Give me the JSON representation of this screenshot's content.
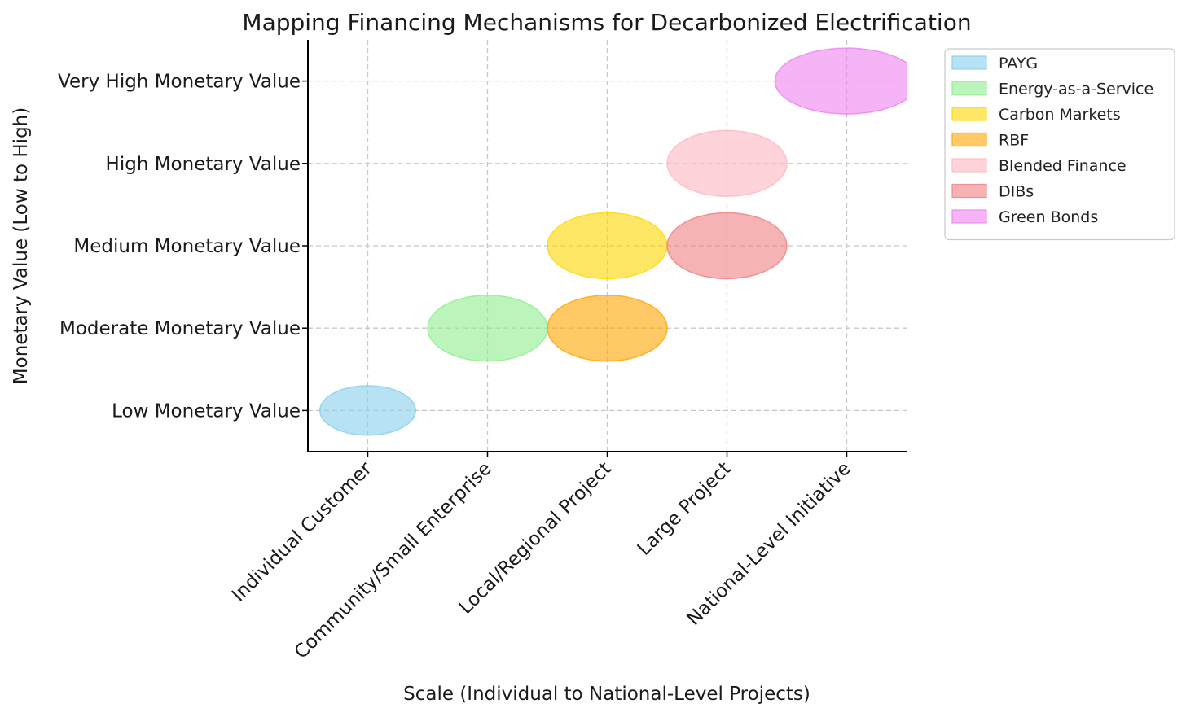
{
  "chart_data": {
    "type": "scatter",
    "title": "Mapping Financing Mechanisms for Decarbonized Electrification",
    "xlabel": "Scale (Individual to National-Level Projects)",
    "ylabel": "Monetary Value (Low to High)",
    "x_categories": [
      "Individual Customer",
      "Community/Small Enterprise",
      "Local/Regional Project",
      "Large Project",
      "National-Level Initiative"
    ],
    "y_categories": [
      "Low Monetary Value",
      "Moderate Monetary Value",
      "Medium Monetary Value",
      "High Monetary Value",
      "Very High Monetary Value"
    ],
    "xlim": [
      -0.5,
      4.5
    ],
    "ylim": [
      -0.5,
      4.5
    ],
    "grid": true,
    "legend_position": "outside upper-right",
    "series": [
      {
        "name": "PAYG",
        "x": 0,
        "y": 0,
        "width": 0.8,
        "height": 0.6,
        "color": "#87ceeb"
      },
      {
        "name": "Energy-as-a-Service",
        "x": 1,
        "y": 1,
        "width": 1.0,
        "height": 0.8,
        "color": "#90ee90"
      },
      {
        "name": "Carbon Markets",
        "x": 2,
        "y": 2,
        "width": 1.0,
        "height": 0.8,
        "color": "#ffd700"
      },
      {
        "name": "RBF",
        "x": 2,
        "y": 1,
        "width": 1.0,
        "height": 0.8,
        "color": "#ffa500"
      },
      {
        "name": "Blended Finance",
        "x": 3,
        "y": 3,
        "width": 1.0,
        "height": 0.8,
        "color": "#ffb6c1"
      },
      {
        "name": "DIBs",
        "x": 3,
        "y": 2,
        "width": 1.0,
        "height": 0.8,
        "color": "#f08080"
      },
      {
        "name": "Green Bonds",
        "x": 4,
        "y": 4,
        "width": 1.2,
        "height": 0.8,
        "color": "#ee82ee"
      }
    ]
  }
}
